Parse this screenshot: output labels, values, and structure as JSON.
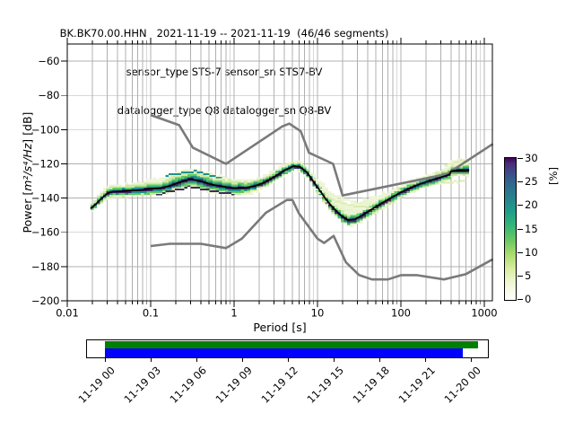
{
  "title": {
    "line1": "BK.BK70.00.HHN   2021-11-19 -- 2021-11-19  (46/46 segments)",
    "line2": "sensor_type STS-7 sensor_sn STS7-BV",
    "line3": "datalogger_type Q8 datalogger_sn Q8-BV"
  },
  "axes": {
    "xlabel": "Period [s]",
    "ylabel_prefix": "Power [",
    "ylabel_math": "m²/s⁴/Hz",
    "ylabel_suffix": "] [dB]",
    "x_ticks": [
      {
        "v": 0.01,
        "label": "0.01"
      },
      {
        "v": 0.1,
        "label": "0.1"
      },
      {
        "v": 1,
        "label": "1"
      },
      {
        "v": 10,
        "label": "10"
      },
      {
        "v": 100,
        "label": "100"
      },
      {
        "v": 1000,
        "label": "1000"
      }
    ],
    "y_ticks": [
      {
        "v": -60,
        "label": "−60"
      },
      {
        "v": -80,
        "label": "−80"
      },
      {
        "v": -100,
        "label": "−100"
      },
      {
        "v": -120,
        "label": "−120"
      },
      {
        "v": -140,
        "label": "−140"
      },
      {
        "v": -160,
        "label": "−160"
      },
      {
        "v": -180,
        "label": "−180"
      },
      {
        "v": -200,
        "label": "−200"
      }
    ]
  },
  "colorbar": {
    "label": "[%]",
    "vmin": 0,
    "vmax": 30,
    "ticks": [
      {
        "v": 0,
        "label": "0"
      },
      {
        "v": 5,
        "label": "5"
      },
      {
        "v": 10,
        "label": "10"
      },
      {
        "v": 15,
        "label": "15"
      },
      {
        "v": 20,
        "label": "20"
      },
      {
        "v": 25,
        "label": "25"
      },
      {
        "v": 30,
        "label": "30"
      }
    ],
    "gradient": [
      [
        0,
        "#ffffff"
      ],
      [
        0.12,
        "#f0f7d4"
      ],
      [
        0.22,
        "#d8eda0"
      ],
      [
        0.32,
        "#aadc6e"
      ],
      [
        0.42,
        "#6cc863"
      ],
      [
        0.52,
        "#36b777"
      ],
      [
        0.62,
        "#1f9e89"
      ],
      [
        0.72,
        "#26828e"
      ],
      [
        0.82,
        "#31688e"
      ],
      [
        0.9,
        "#3e4989"
      ],
      [
        0.96,
        "#462f7c"
      ],
      [
        1,
        "#440154"
      ]
    ]
  },
  "timeline": {
    "labels": [
      "11-19 00",
      "11-19 03",
      "11-19 06",
      "11-19 09",
      "11-19 12",
      "11-19 15",
      "11-19 18",
      "11-19 21",
      "11-20 00"
    ],
    "green_color": "#008000",
    "blue_color": "#0000ff",
    "green_frac": [
      0,
      1.02
    ],
    "blue_frac": [
      0,
      0.978
    ]
  },
  "chart_data": {
    "type": "heatmap",
    "subtype": "ppsd-probability-histogram",
    "title": "BK.BK70.00.HHN   2021-11-19 -- 2021-11-19  (46/46 segments)",
    "xlabel": "Period [s]",
    "ylabel": "Power [m²/s⁴/Hz] [dB]",
    "x_scale": "log",
    "xlim": [
      0.01,
      1265
    ],
    "ylim": [
      -200,
      -50
    ],
    "grid": true,
    "colorbar_label": "[%]",
    "colorbar_range": [
      0,
      30
    ],
    "mode_line": [
      [
        0.019,
        -146.2
      ],
      [
        0.022,
        -143.5
      ],
      [
        0.026,
        -140.0
      ],
      [
        0.03,
        -137.3
      ],
      [
        0.035,
        -136.2
      ],
      [
        0.045,
        -136.0
      ],
      [
        0.06,
        -135.6
      ],
      [
        0.08,
        -135.2
      ],
      [
        0.1,
        -134.5
      ],
      [
        0.13,
        -134.2
      ],
      [
        0.17,
        -132.8
      ],
      [
        0.22,
        -130.8
      ],
      [
        0.3,
        -128.9
      ],
      [
        0.4,
        -130.2
      ],
      [
        0.55,
        -132.2
      ],
      [
        0.75,
        -133.3
      ],
      [
        1.0,
        -134.2
      ],
      [
        1.4,
        -133.9
      ],
      [
        1.8,
        -132.8
      ],
      [
        2.3,
        -130.9
      ],
      [
        3.0,
        -127.8
      ],
      [
        4.0,
        -123.9
      ],
      [
        5.2,
        -121.2
      ],
      [
        6.2,
        -121.8
      ],
      [
        7.5,
        -125.0
      ],
      [
        9.0,
        -130.5
      ],
      [
        11,
        -136.5
      ],
      [
        13,
        -141.5
      ],
      [
        16,
        -146.5
      ],
      [
        19,
        -150.0
      ],
      [
        23,
        -152.8
      ],
      [
        28,
        -152.4
      ],
      [
        34,
        -150.2
      ],
      [
        42,
        -147.3
      ],
      [
        52,
        -144.6
      ],
      [
        65,
        -141.8
      ],
      [
        80,
        -139.3
      ],
      [
        100,
        -136.6
      ],
      [
        130,
        -134.0
      ],
      [
        170,
        -131.8
      ],
      [
        220,
        -129.9
      ],
      [
        280,
        -128.3
      ],
      [
        350,
        -126.9
      ],
      [
        385,
        -126.0
      ],
      [
        400,
        -124.3
      ],
      [
        430,
        -123.9
      ],
      [
        520,
        -123.9
      ],
      [
        660,
        -123.7
      ]
    ],
    "noise_models": {
      "nhnm": [
        [
          0.1,
          -91.5
        ],
        [
          0.22,
          -97.4
        ],
        [
          0.32,
          -110.5
        ],
        [
          0.8,
          -120.0
        ],
        [
          3.8,
          -98.1
        ],
        [
          4.6,
          -96.5
        ],
        [
          6.3,
          -101.0
        ],
        [
          7.9,
          -113.5
        ],
        [
          15.4,
          -120.0
        ],
        [
          20,
          -138.5
        ],
        [
          354.8,
          -126.0
        ],
        [
          1265,
          -108.4
        ]
      ],
      "nlnm": [
        [
          0.1,
          -168.0
        ],
        [
          0.17,
          -166.7
        ],
        [
          0.4,
          -166.7
        ],
        [
          0.8,
          -169.2
        ],
        [
          1.24,
          -163.7
        ],
        [
          2.4,
          -148.6
        ],
        [
          4.3,
          -141.1
        ],
        [
          5.0,
          -141.1
        ],
        [
          6.0,
          -149.0
        ],
        [
          10,
          -163.7
        ],
        [
          12,
          -166.2
        ],
        [
          15.6,
          -162.1
        ],
        [
          21.9,
          -177.5
        ],
        [
          31.6,
          -185.0
        ],
        [
          45,
          -187.5
        ],
        [
          70,
          -187.5
        ],
        [
          101,
          -185.0
        ],
        [
          154,
          -185.0
        ],
        [
          328,
          -187.5
        ],
        [
          600,
          -184.4
        ],
        [
          1265,
          -175.7
        ]
      ]
    },
    "density_levels": [
      {
        "percent": 2,
        "color": "#edf5d6",
        "half_widths": [
          [
            0.019,
            2.5,
            2.5
          ],
          [
            0.03,
            4,
            3.5
          ],
          [
            0.08,
            4.5,
            4
          ],
          [
            0.15,
            6.5,
            4.5
          ],
          [
            0.3,
            6,
            5
          ],
          [
            0.6,
            6.5,
            5
          ],
          [
            1.2,
            5,
            4.5
          ],
          [
            2.5,
            4,
            3.5
          ],
          [
            5,
            3,
            2.8
          ],
          [
            8,
            3.5,
            3
          ],
          [
            12,
            7,
            3.5
          ],
          [
            20,
            9.5,
            3.5
          ],
          [
            33,
            9,
            4
          ],
          [
            55,
            6,
            4
          ],
          [
            100,
            4.5,
            3.5
          ],
          [
            200,
            4,
            3.5
          ],
          [
            330,
            5,
            3.5
          ],
          [
            480,
            6.5,
            4
          ],
          [
            660,
            7,
            4
          ]
        ]
      },
      {
        "percent": 6,
        "color": "#cfe8a4",
        "half_widths": [
          [
            0.019,
            2,
            2
          ],
          [
            0.03,
            3.2,
            3
          ],
          [
            0.1,
            3.6,
            3.4
          ],
          [
            0.3,
            4.8,
            4
          ],
          [
            0.7,
            4.2,
            3.6
          ],
          [
            1.5,
            3.4,
            3
          ],
          [
            3,
            2.6,
            2.4
          ],
          [
            5,
            2.2,
            2.2
          ],
          [
            8,
            2.4,
            2.4
          ],
          [
            15,
            2.8,
            2.8
          ],
          [
            25,
            2.8,
            3
          ],
          [
            50,
            2.6,
            3
          ],
          [
            100,
            2.6,
            2.8
          ],
          [
            200,
            2.6,
            2.8
          ],
          [
            400,
            3,
            3
          ],
          [
            660,
            3.6,
            3
          ]
        ]
      },
      {
        "percent": 12,
        "color": "#5ec962",
        "half_widths": [
          [
            0.019,
            1.5,
            1.5
          ],
          [
            0.1,
            2.4,
            2.6
          ],
          [
            0.3,
            3,
            3
          ],
          [
            1,
            2.6,
            2.6
          ],
          [
            3,
            1.9,
            2
          ],
          [
            5,
            1.5,
            1.8
          ],
          [
            10,
            1.7,
            2.2
          ],
          [
            20,
            1.8,
            2.5
          ],
          [
            50,
            1.8,
            2.4
          ],
          [
            100,
            1.8,
            2.2
          ],
          [
            300,
            2,
            2.2
          ],
          [
            660,
            2.4,
            2.2
          ]
        ]
      },
      {
        "percent": 20,
        "color": "#21908c",
        "half_widths": [
          [
            0.019,
            0.9,
            1
          ],
          [
            0.1,
            1.4,
            1.7
          ],
          [
            0.3,
            1.7,
            1.9
          ],
          [
            1,
            1.5,
            1.6
          ],
          [
            3,
            1.1,
            1.3
          ],
          [
            5,
            0.9,
            1.2
          ],
          [
            10,
            1,
            1.5
          ],
          [
            20,
            1.1,
            1.7
          ],
          [
            50,
            1,
            1.6
          ],
          [
            100,
            1,
            1.4
          ],
          [
            300,
            1.1,
            1.4
          ],
          [
            660,
            1.3,
            1.4
          ]
        ]
      },
      {
        "percent": 28,
        "color": "#3f2a66",
        "half_widths": [
          [
            0.019,
            0.5,
            0.6
          ],
          [
            0.1,
            0.6,
            1
          ],
          [
            0.3,
            0.7,
            1.1
          ],
          [
            1,
            0.6,
            1
          ],
          [
            3,
            0.5,
            0.9
          ],
          [
            5,
            0.4,
            0.9
          ],
          [
            10,
            0.5,
            1.1
          ],
          [
            20,
            0.6,
            1.3
          ],
          [
            50,
            0.5,
            1.1
          ],
          [
            100,
            0.5,
            1
          ],
          [
            300,
            0.5,
            1
          ],
          [
            660,
            0.6,
            1
          ]
        ]
      }
    ],
    "outlier_streaks": [
      {
        "color": "#e7f3cc",
        "points": [
          [
            9,
            -133.5
          ],
          [
            14,
            -137.5
          ],
          [
            25,
            -141.5
          ],
          [
            45,
            -143.5
          ]
        ]
      },
      {
        "color": "#dcecae",
        "points": [
          [
            10,
            -136.5
          ],
          [
            16,
            -141.5
          ],
          [
            30,
            -145
          ],
          [
            50,
            -146.2
          ]
        ]
      },
      {
        "color": "#e7f3cc",
        "points": [
          [
            12,
            -141.5
          ],
          [
            20,
            -146.5
          ],
          [
            35,
            -148.2
          ]
        ]
      },
      {
        "color": "#dcecae",
        "points": [
          [
            330,
            -121.5
          ],
          [
            480,
            -118.8
          ],
          [
            660,
            -117.8
          ]
        ]
      },
      {
        "color": "#e7f3cc",
        "points": [
          [
            420,
            -120.3
          ],
          [
            660,
            -119.2
          ]
        ]
      },
      {
        "color": "#e7f3cc",
        "points": [
          [
            0.16,
            -126
          ],
          [
            0.3,
            -123.8
          ],
          [
            0.55,
            -126.2
          ]
        ]
      },
      {
        "color": "#dcecae",
        "points": [
          [
            300,
            -131.5
          ],
          [
            450,
            -130.5
          ],
          [
            620,
            -129.8
          ]
        ]
      },
      {
        "color": "#3f2a66",
        "points": [
          [
            0.12,
            -137.8
          ],
          [
            0.3,
            -133.6
          ],
          [
            0.6,
            -136.4
          ],
          [
            1.0,
            -137.8
          ]
        ]
      },
      {
        "color": "#21908c",
        "points": [
          [
            0.15,
            -126.8
          ],
          [
            0.35,
            -124.6
          ],
          [
            0.7,
            -128.2
          ]
        ]
      }
    ]
  }
}
